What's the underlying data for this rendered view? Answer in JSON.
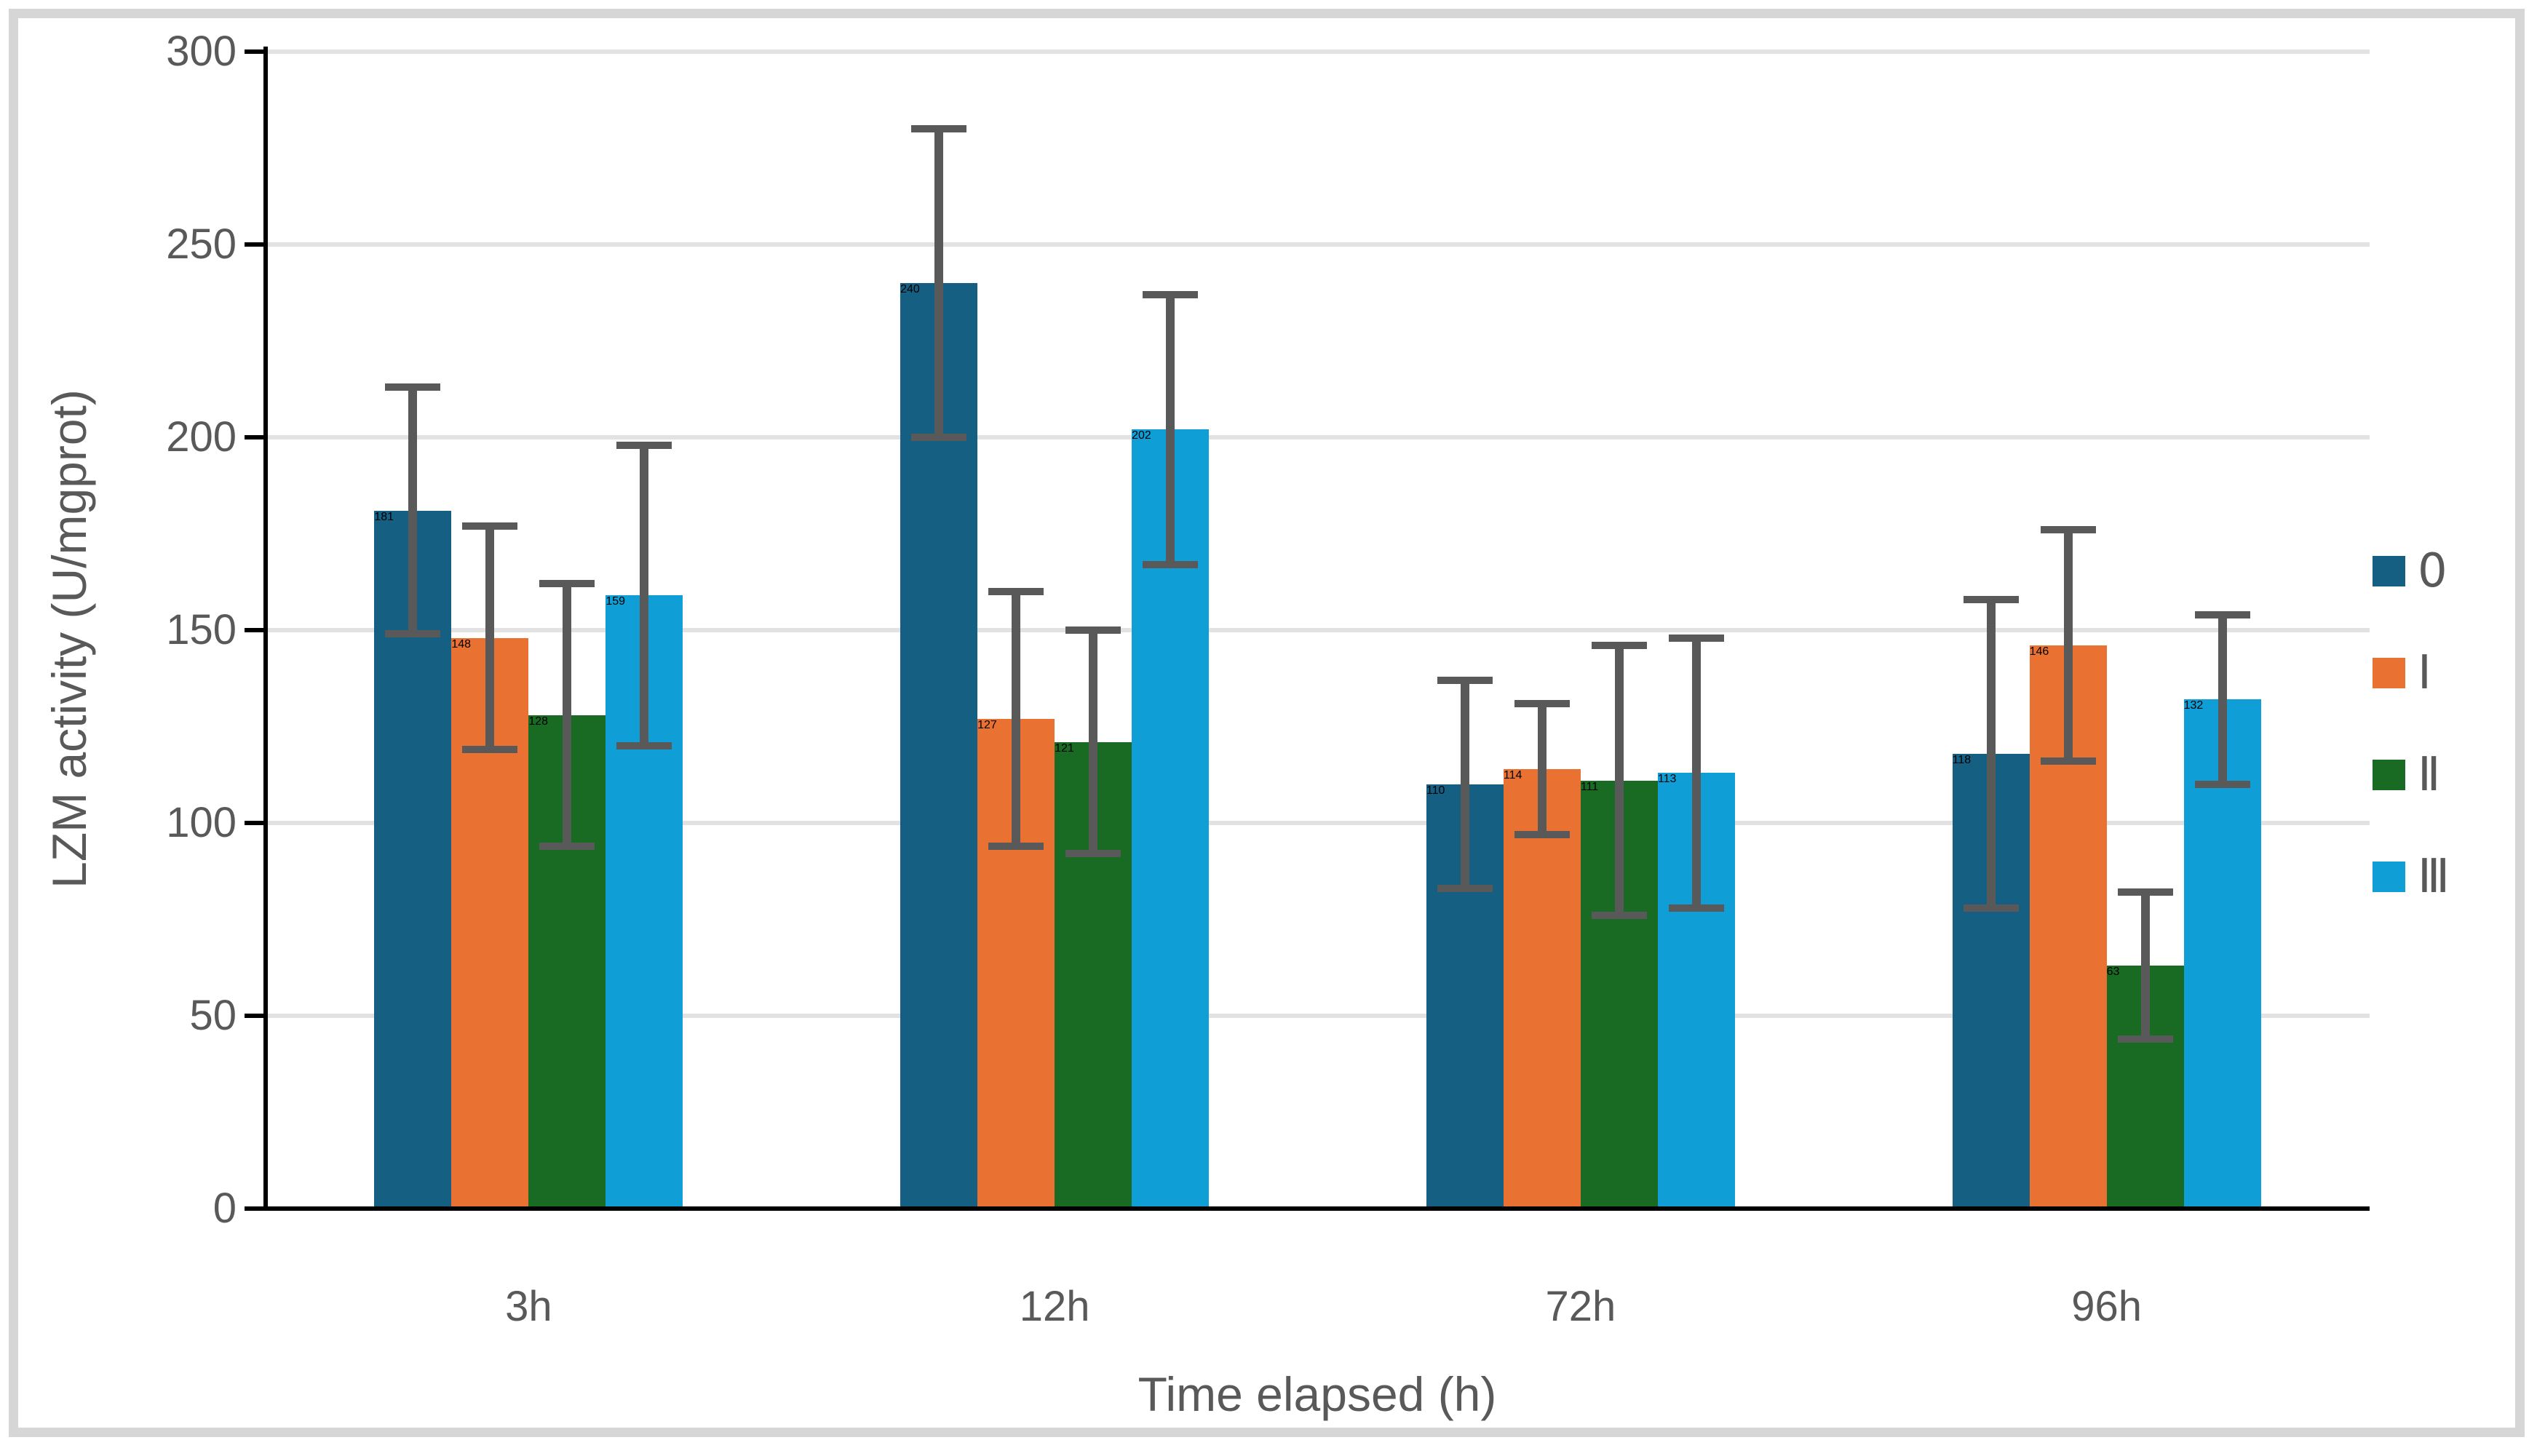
{
  "chart_data": {
    "type": "bar",
    "title": "",
    "categories": [
      "3h",
      "12h",
      "72h",
      "96h"
    ],
    "series": [
      {
        "name": "0",
        "color": "#156082",
        "values": [
          181,
          240,
          110,
          118
        ],
        "errors": [
          32,
          40,
          27,
          40
        ]
      },
      {
        "name": "Ⅰ",
        "color": "#E97132",
        "values": [
          148,
          127,
          114,
          146
        ],
        "errors": [
          29,
          33,
          17,
          30
        ]
      },
      {
        "name": "Ⅱ",
        "color": "#196B24",
        "values": [
          128,
          121,
          111,
          63
        ],
        "errors": [
          34,
          29,
          35,
          19
        ]
      },
      {
        "name": "Ⅲ",
        "color": "#0F9ED5",
        "values": [
          159,
          202,
          113,
          132
        ],
        "errors": [
          39,
          35,
          35,
          22
        ]
      }
    ],
    "xlabel": "Time elapsed (h)",
    "ylabel": "LZM activity (U/mgprot)",
    "ylim": [
      0,
      300
    ],
    "yticks": [
      0,
      50,
      100,
      150,
      200,
      250,
      300
    ],
    "grid": true,
    "legend_position": "right",
    "colors": {
      "error_bar": "#595959",
      "axis": "#000000",
      "gridline": "#E2E2E2",
      "labels": "#595959",
      "frame_border": "#D6D6D6",
      "background": "#FFFFFF"
    }
  }
}
